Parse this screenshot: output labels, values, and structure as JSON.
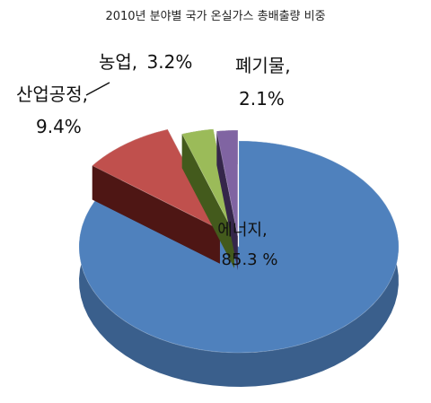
{
  "chart_data": {
    "type": "pie",
    "title": "2010년 분야별 국가 온실가스 총배출량 비중",
    "slices": [
      {
        "name": "에너지",
        "value": 85.3,
        "label_name": "에너지,",
        "label_value": "85.3 %",
        "color": "#4F81BD",
        "side": "#3A5F8C",
        "dark": "#25415F"
      },
      {
        "name": "산업공정",
        "value": 9.4,
        "label_name": "산업공정,",
        "label_value": "9.4%",
        "color": "#C0504D",
        "side": "#6E1E1C",
        "dark": "#4E1614"
      },
      {
        "name": "농업",
        "value": 3.2,
        "label_name": "농업,",
        "label_value": "3.2%",
        "color": "#9BBB59",
        "side": "#5E7A2A",
        "dark": "#435A1C"
      },
      {
        "name": "폐기물",
        "value": 2.1,
        "label_name": "폐기물,",
        "label_value": "2.1%",
        "color": "#8064A2",
        "side": "#4F3A6B",
        "dark": "#35264A"
      }
    ]
  }
}
